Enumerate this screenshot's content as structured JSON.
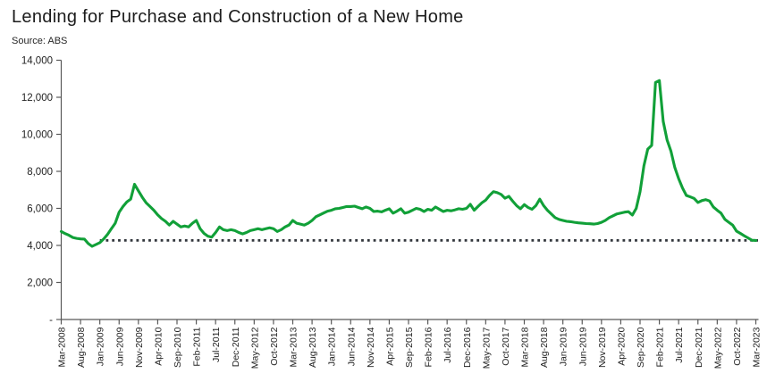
{
  "chart_data": {
    "type": "line",
    "title": "Lending for Purchase and Construction of a New Home",
    "source_note": "Source: ABS",
    "x_start": "Mar-2008",
    "x_end": "Mar-2023",
    "x_tick_interval_months": 5,
    "x_tick_labels": [
      "Mar-2008",
      "Aug-2008",
      "Jan-2009",
      "Jun-2009",
      "Nov-2009",
      "Apr-2010",
      "Sep-2010",
      "Feb-2011",
      "Jul-2011",
      "Dec-2011",
      "May-2012",
      "Oct-2012",
      "Mar-2013",
      "Aug-2013",
      "Jan-2014",
      "Jun-2014",
      "Nov-2014",
      "Apr-2015",
      "Sep-2015",
      "Feb-2016",
      "Jul-2016",
      "Dec-2016",
      "May-2017",
      "Oct-2017",
      "Mar-2018",
      "Aug-2018",
      "Jan-2019",
      "Jun-2019",
      "Nov-2019",
      "Apr-2020",
      "Sep-2020",
      "Feb-2021",
      "Jul-2021",
      "Dec-2021",
      "May-2022",
      "Oct-2022",
      "Mar-2023"
    ],
    "y_tick_labels": [
      "-",
      "2,000",
      "4,000",
      "6,000",
      "8,000",
      "10,000",
      "12,000",
      "14,000"
    ],
    "y_tick_values": [
      0,
      2000,
      4000,
      6000,
      8000,
      10000,
      12000,
      14000
    ],
    "ylim": [
      0,
      14000
    ],
    "grid": false,
    "legend": false,
    "line_color": "#11A038",
    "axis_color": "#595959",
    "reference_line": {
      "value": 4270,
      "style": "dotted",
      "color": "#32363c",
      "starts_at_month_index": 10
    },
    "series": [
      {
        "name": "Lending for purchase and construction of a new home",
        "values": [
          4750,
          4640,
          4550,
          4430,
          4380,
          4350,
          4340,
          4100,
          3950,
          4050,
          4150,
          4350,
          4600,
          4900,
          5200,
          5800,
          6100,
          6350,
          6500,
          7300,
          6950,
          6600,
          6300,
          6100,
          5900,
          5650,
          5450,
          5300,
          5100,
          5300,
          5150,
          5000,
          5050,
          5000,
          5200,
          5350,
          4900,
          4650,
          4500,
          4450,
          4700,
          5000,
          4850,
          4800,
          4850,
          4800,
          4700,
          4620,
          4700,
          4800,
          4850,
          4900,
          4850,
          4900,
          4950,
          4900,
          4750,
          4850,
          5000,
          5100,
          5350,
          5200,
          5150,
          5100,
          5200,
          5350,
          5550,
          5650,
          5750,
          5850,
          5900,
          5980,
          6000,
          6050,
          6100,
          6100,
          6120,
          6050,
          5980,
          6075,
          6000,
          5830,
          5850,
          5810,
          5900,
          5980,
          5740,
          5850,
          5980,
          5740,
          5800,
          5900,
          6000,
          5950,
          5830,
          5950,
          5900,
          6075,
          5950,
          5830,
          5900,
          5870,
          5920,
          5980,
          5950,
          6000,
          6220,
          5900,
          6100,
          6300,
          6450,
          6700,
          6900,
          6850,
          6750,
          6550,
          6650,
          6390,
          6150,
          5980,
          6200,
          6050,
          5950,
          6150,
          6500,
          6150,
          5900,
          5700,
          5500,
          5400,
          5350,
          5300,
          5280,
          5250,
          5220,
          5200,
          5180,
          5170,
          5150,
          5180,
          5250,
          5350,
          5500,
          5600,
          5700,
          5750,
          5800,
          5820,
          5640,
          6000,
          6900,
          8300,
          9200,
          9400,
          12800,
          12900,
          10700,
          9700,
          9100,
          8200,
          7600,
          7100,
          6700,
          6620,
          6540,
          6320,
          6420,
          6470,
          6400,
          6075,
          5900,
          5740,
          5400,
          5250,
          5100,
          4770,
          4650,
          4520,
          4400,
          4280,
          4270
        ]
      }
    ]
  }
}
